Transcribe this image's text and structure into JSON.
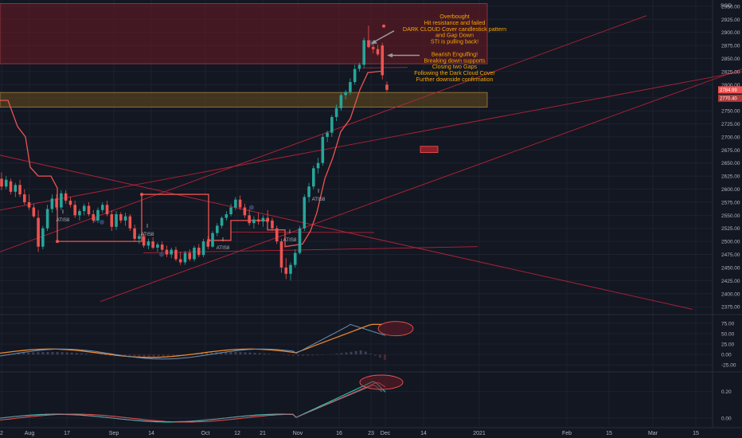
{
  "chart_data": {
    "type": "candlestick",
    "currency_label": "SGD",
    "y_ticks": [
      2950,
      2925,
      2900,
      2875,
      2850,
      2825,
      2800,
      2775,
      2750,
      2725,
      2700,
      2675,
      2650,
      2625,
      2600,
      2575,
      2550,
      2525,
      2500,
      2475,
      2450,
      2425,
      2400,
      2375
    ],
    "y_tick_labels": [
      "2950.00",
      "2925.00",
      "2900.00",
      "2875.00",
      "2850.00",
      "2825.00",
      "2800.00",
      "2775.00",
      "2750.00",
      "2725.00",
      "2700.00",
      "2675.00",
      "2650.00",
      "2625.00",
      "2600.00",
      "2575.00",
      "2550.00",
      "2525.00",
      "2500.00",
      "2475.00",
      "2450.00",
      "2425.00",
      "2400.00",
      "2375.00"
    ],
    "ylim": [
      2360,
      2962
    ],
    "last_price_tag": "2784.99",
    "stop_price_tag": "2770.40",
    "x_ticks": [
      "2",
      "Aug",
      "17",
      "Sep",
      "14",
      "Oct",
      "12",
      "21",
      "Nov",
      "16",
      "23",
      "Dec",
      "14",
      "2021",
      "Feb",
      "15",
      "Mar",
      "15"
    ],
    "candles": [
      {
        "o": 2620,
        "h": 2632,
        "l": 2598,
        "c": 2605
      },
      {
        "o": 2605,
        "h": 2625,
        "l": 2600,
        "c": 2618
      },
      {
        "o": 2615,
        "h": 2620,
        "l": 2590,
        "c": 2595
      },
      {
        "o": 2595,
        "h": 2612,
        "l": 2585,
        "c": 2608
      },
      {
        "o": 2608,
        "h": 2618,
        "l": 2585,
        "c": 2590
      },
      {
        "o": 2590,
        "h": 2600,
        "l": 2570,
        "c": 2575
      },
      {
        "o": 2575,
        "h": 2590,
        "l": 2560,
        "c": 2565
      },
      {
        "o": 2565,
        "h": 2572,
        "l": 2545,
        "c": 2548
      },
      {
        "o": 2545,
        "h": 2560,
        "l": 2480,
        "c": 2490
      },
      {
        "o": 2490,
        "h": 2530,
        "l": 2485,
        "c": 2525
      },
      {
        "o": 2525,
        "h": 2570,
        "l": 2520,
        "c": 2562
      },
      {
        "o": 2562,
        "h": 2590,
        "l": 2555,
        "c": 2582
      },
      {
        "o": 2582,
        "h": 2590,
        "l": 2560,
        "c": 2565
      },
      {
        "o": 2565,
        "h": 2598,
        "l": 2560,
        "c": 2592
      },
      {
        "o": 2592,
        "h": 2598,
        "l": 2572,
        "c": 2578
      },
      {
        "o": 2578,
        "h": 2585,
        "l": 2565,
        "c": 2570
      },
      {
        "o": 2570,
        "h": 2578,
        "l": 2545,
        "c": 2550
      },
      {
        "o": 2550,
        "h": 2562,
        "l": 2540,
        "c": 2558
      },
      {
        "o": 2558,
        "h": 2572,
        "l": 2550,
        "c": 2568
      },
      {
        "o": 2568,
        "h": 2575,
        "l": 2548,
        "c": 2552
      },
      {
        "o": 2552,
        "h": 2560,
        "l": 2535,
        "c": 2540
      },
      {
        "o": 2540,
        "h": 2565,
        "l": 2535,
        "c": 2560
      },
      {
        "o": 2560,
        "h": 2575,
        "l": 2555,
        "c": 2570
      },
      {
        "o": 2570,
        "h": 2578,
        "l": 2548,
        "c": 2552
      },
      {
        "o": 2552,
        "h": 2560,
        "l": 2520,
        "c": 2528
      },
      {
        "o": 2528,
        "h": 2558,
        "l": 2522,
        "c": 2552
      },
      {
        "o": 2552,
        "h": 2556,
        "l": 2535,
        "c": 2540
      },
      {
        "o": 2540,
        "h": 2555,
        "l": 2530,
        "c": 2548
      },
      {
        "o": 2548,
        "h": 2552,
        "l": 2520,
        "c": 2525
      },
      {
        "o": 2525,
        "h": 2532,
        "l": 2500,
        "c": 2505
      },
      {
        "o": 2505,
        "h": 2515,
        "l": 2495,
        "c": 2510
      },
      {
        "o": 2510,
        "h": 2515,
        "l": 2488,
        "c": 2492
      },
      {
        "o": 2492,
        "h": 2505,
        "l": 2485,
        "c": 2500
      },
      {
        "o": 2500,
        "h": 2508,
        "l": 2485,
        "c": 2488
      },
      {
        "o": 2488,
        "h": 2498,
        "l": 2480,
        "c": 2494
      },
      {
        "o": 2494,
        "h": 2500,
        "l": 2480,
        "c": 2484
      },
      {
        "o": 2484,
        "h": 2492,
        "l": 2470,
        "c": 2475
      },
      {
        "o": 2475,
        "h": 2488,
        "l": 2468,
        "c": 2484
      },
      {
        "o": 2484,
        "h": 2490,
        "l": 2462,
        "c": 2466
      },
      {
        "o": 2466,
        "h": 2480,
        "l": 2455,
        "c": 2460
      },
      {
        "o": 2460,
        "h": 2482,
        "l": 2455,
        "c": 2478
      },
      {
        "o": 2478,
        "h": 2485,
        "l": 2462,
        "c": 2466
      },
      {
        "o": 2466,
        "h": 2492,
        "l": 2462,
        "c": 2488
      },
      {
        "o": 2488,
        "h": 2495,
        "l": 2470,
        "c": 2474
      },
      {
        "o": 2474,
        "h": 2505,
        "l": 2470,
        "c": 2500
      },
      {
        "o": 2500,
        "h": 2510,
        "l": 2485,
        "c": 2490
      },
      {
        "o": 2490,
        "h": 2520,
        "l": 2488,
        "c": 2516
      },
      {
        "o": 2516,
        "h": 2535,
        "l": 2510,
        "c": 2530
      },
      {
        "o": 2530,
        "h": 2548,
        "l": 2525,
        "c": 2545
      },
      {
        "o": 2545,
        "h": 2558,
        "l": 2540,
        "c": 2552
      },
      {
        "o": 2552,
        "h": 2572,
        "l": 2548,
        "c": 2565
      },
      {
        "o": 2565,
        "h": 2585,
        "l": 2560,
        "c": 2580
      },
      {
        "o": 2580,
        "h": 2588,
        "l": 2560,
        "c": 2565
      },
      {
        "o": 2565,
        "h": 2572,
        "l": 2545,
        "c": 2550
      },
      {
        "o": 2550,
        "h": 2562,
        "l": 2530,
        "c": 2535
      },
      {
        "o": 2535,
        "h": 2548,
        "l": 2525,
        "c": 2542
      },
      {
        "o": 2542,
        "h": 2555,
        "l": 2532,
        "c": 2538
      },
      {
        "o": 2538,
        "h": 2550,
        "l": 2528,
        "c": 2545
      },
      {
        "o": 2545,
        "h": 2560,
        "l": 2535,
        "c": 2540
      },
      {
        "o": 2540,
        "h": 2545,
        "l": 2520,
        "c": 2525
      },
      {
        "o": 2525,
        "h": 2530,
        "l": 2495,
        "c": 2500
      },
      {
        "o": 2500,
        "h": 2505,
        "l": 2440,
        "c": 2450
      },
      {
        "o": 2450,
        "h": 2468,
        "l": 2428,
        "c": 2438
      },
      {
        "o": 2438,
        "h": 2460,
        "l": 2425,
        "c": 2455
      },
      {
        "o": 2455,
        "h": 2485,
        "l": 2450,
        "c": 2478
      },
      {
        "o": 2478,
        "h": 2530,
        "l": 2475,
        "c": 2525
      },
      {
        "o": 2525,
        "h": 2590,
        "l": 2520,
        "c": 2585
      },
      {
        "o": 2585,
        "h": 2612,
        "l": 2575,
        "c": 2605
      },
      {
        "o": 2605,
        "h": 2645,
        "l": 2600,
        "c": 2640
      },
      {
        "o": 2640,
        "h": 2660,
        "l": 2630,
        "c": 2650
      },
      {
        "o": 2650,
        "h": 2705,
        "l": 2645,
        "c": 2700
      },
      {
        "o": 2700,
        "h": 2712,
        "l": 2690,
        "c": 2708
      },
      {
        "o": 2708,
        "h": 2742,
        "l": 2700,
        "c": 2738
      },
      {
        "o": 2738,
        "h": 2762,
        "l": 2730,
        "c": 2755
      },
      {
        "o": 2755,
        "h": 2785,
        "l": 2750,
        "c": 2780
      },
      {
        "o": 2780,
        "h": 2790,
        "l": 2772,
        "c": 2786
      },
      {
        "o": 2786,
        "h": 2812,
        "l": 2780,
        "c": 2805
      },
      {
        "o": 2805,
        "h": 2838,
        "l": 2800,
        "c": 2830
      },
      {
        "o": 2830,
        "h": 2842,
        "l": 2825,
        "c": 2838
      },
      {
        "o": 2838,
        "h": 2890,
        "l": 2832,
        "c": 2885
      },
      {
        "o": 2885,
        "h": 2913,
        "l": 2870,
        "c": 2872
      },
      {
        "o": 2872,
        "h": 2882,
        "l": 2860,
        "c": 2868
      },
      {
        "o": 2868,
        "h": 2876,
        "l": 2855,
        "c": 2858
      },
      {
        "o": 2875,
        "h": 2880,
        "l": 2810,
        "c": 2818
      },
      {
        "o": 2800,
        "h": 2806,
        "l": 2786,
        "c": 2790
      }
    ],
    "atis8_labels": [
      "ATIS8",
      "ATIS8",
      "ATIS8",
      "ATIS8",
      "ATIS8"
    ],
    "annotation_lines": [
      "Overbought",
      "Hit resistance and failed",
      "DARK CLOUD Cover candlestick pattern",
      "and Gap Down",
      "STI is pulling back!",
      "",
      "Bearish Engulfing!",
      "Breaking down supports",
      "Closing two Gaps",
      "Following the Dark Cloud Cover",
      "Further downside confirmation"
    ],
    "indicator1": {
      "y_ticks": [
        "75.00",
        "50.00",
        "25.00",
        "0.00",
        "-25.00"
      ]
    },
    "indicator2": {
      "y_ticks": [
        "0.20",
        "0.00"
      ]
    },
    "colors": {
      "background": "#131722",
      "up": "#26a69a",
      "down": "#ef5350",
      "resistance_zone": "#6b1a23",
      "support_zone": "#5a4521",
      "annotation": "#f7a600",
      "trendline": "#c2253a"
    }
  }
}
